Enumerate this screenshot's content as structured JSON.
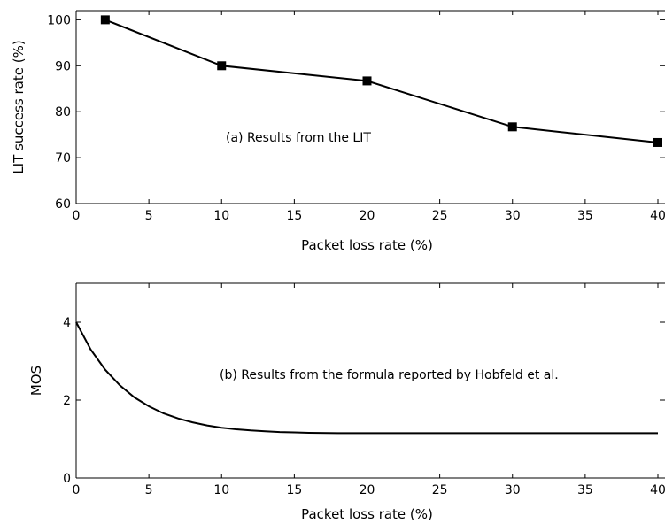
{
  "chart_data": [
    {
      "type": "line",
      "panel": "a",
      "xlabel": "Packet loss rate (%)",
      "ylabel": "LIT success rate (%)",
      "annotation": "(a) Results from the LIT",
      "xlim": [
        0,
        40
      ],
      "ylim": [
        60,
        102
      ],
      "x_ticks": [
        0,
        5,
        10,
        15,
        20,
        25,
        30,
        35,
        40
      ],
      "y_ticks": [
        60,
        70,
        80,
        90,
        100
      ],
      "x_tick_labels": [
        "0",
        "5",
        "10",
        "15",
        "20",
        "25",
        "30",
        "35",
        "40"
      ],
      "y_tick_labels": [
        "60",
        "70",
        "80",
        "90",
        "100"
      ],
      "marker": "square",
      "series": [
        {
          "x": [
            2,
            10,
            20,
            30,
            40
          ],
          "y": [
            100,
            90,
            86.7,
            76.7,
            73.3
          ],
          "color": "#000000"
        }
      ]
    },
    {
      "type": "line",
      "panel": "b",
      "xlabel": "Packet loss rate (%)",
      "ylabel": "MOS",
      "annotation": "(b) Results from the formula reported by Hobfeld et al.",
      "xlim": [
        0,
        40
      ],
      "ylim": [
        0,
        5
      ],
      "x_ticks": [
        0,
        5,
        10,
        15,
        20,
        25,
        30,
        35,
        40
      ],
      "y_ticks": [
        0,
        2,
        4
      ],
      "x_tick_labels": [
        "0",
        "5",
        "10",
        "15",
        "20",
        "25",
        "30",
        "35",
        "40"
      ],
      "y_tick_labels": [
        "0",
        "2",
        "4"
      ],
      "series": [
        {
          "x": [
            0,
            1,
            2,
            3,
            4,
            5,
            6,
            7,
            8,
            9,
            10,
            11,
            12,
            13,
            14,
            15,
            16,
            18,
            20,
            25,
            30,
            35,
            40
          ],
          "y": [
            4.0,
            3.3,
            2.78,
            2.38,
            2.07,
            1.84,
            1.66,
            1.53,
            1.43,
            1.35,
            1.29,
            1.25,
            1.22,
            1.2,
            1.18,
            1.17,
            1.16,
            1.15,
            1.15,
            1.15,
            1.15,
            1.15,
            1.15
          ],
          "color": "#000000"
        }
      ]
    }
  ]
}
